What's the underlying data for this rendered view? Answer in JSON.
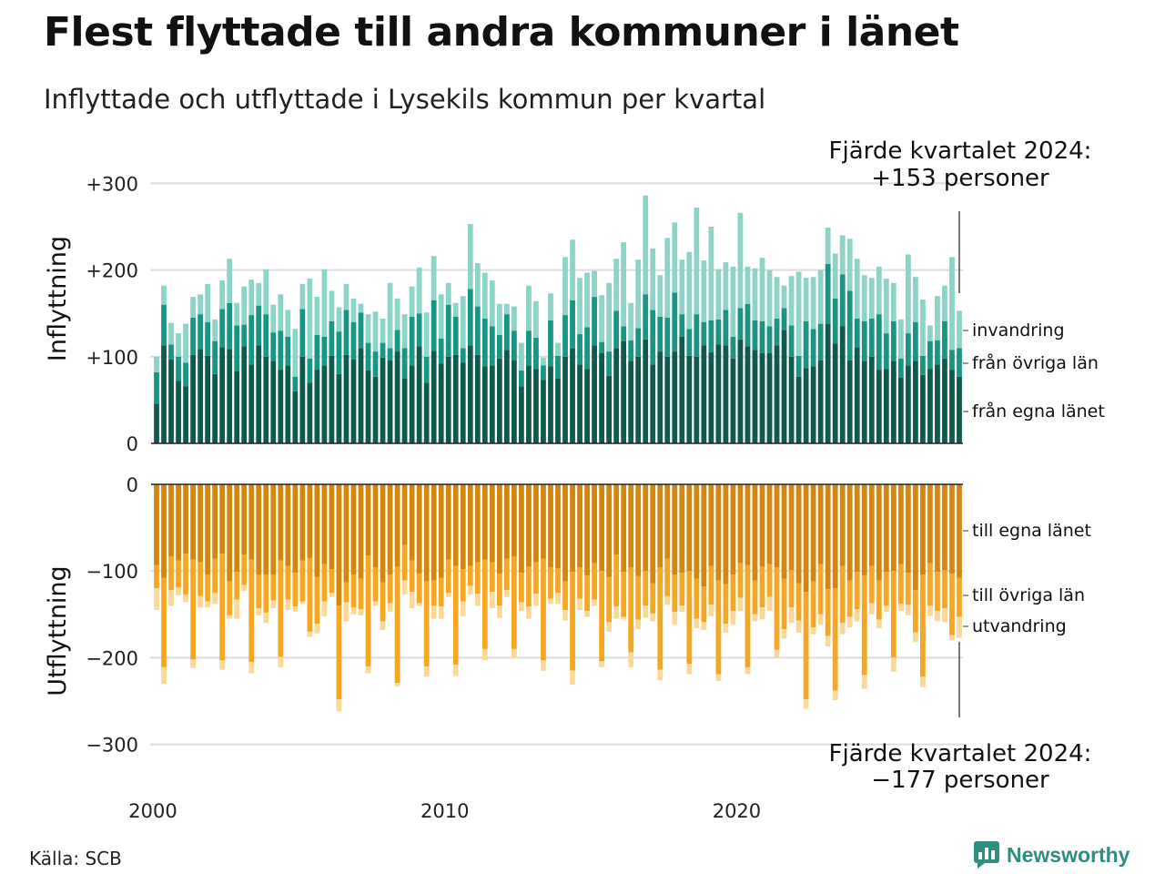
{
  "title": "Flest flyttade till andra kommuner i länet",
  "subtitle": "Inflyttade och utflyttade i Lysekils kommun per kvartal",
  "source": "Källa: SCB",
  "brand": "Newsworthy",
  "colors": {
    "in_own": "#10594f",
    "in_other": "#1a9483",
    "in_immig": "#8dd3c7",
    "out_own": "#d4860e",
    "out_other": "#f5a623",
    "out_emig": "#f9d89a",
    "grid": "#dddddd",
    "brand": "#2f8e7f"
  },
  "chart_data": [
    {
      "type": "bar",
      "stacked": true,
      "ylabel": "Inflyttning",
      "ylim": [
        0,
        300
      ],
      "yticks": [
        0,
        100,
        200,
        300
      ],
      "ytick_labels": [
        "0",
        "+100",
        "+200",
        "+300"
      ],
      "x_start": 2000,
      "frequency": "quarterly",
      "xticks": [
        2000,
        2010,
        2020
      ],
      "annotation": {
        "line1": "Fjärde kvartalet 2024:",
        "line2": "+153 personer"
      },
      "series": [
        {
          "name": "från egna länet",
          "values": [
            46,
            113,
            97,
            72,
            66,
            102,
            109,
            101,
            80,
            111,
            109,
            83,
            112,
            91,
            113,
            100,
            95,
            85,
            90,
            60,
            100,
            70,
            85,
            90,
            101,
            80,
            102,
            97,
            110,
            84,
            77,
            99,
            96,
            106,
            75,
            90,
            112,
            70,
            107,
            92,
            100,
            102,
            93,
            113,
            102,
            89,
            90,
            98,
            108,
            96,
            66,
            90,
            86,
            73,
            89,
            75,
            100,
            110,
            91,
            86,
            113,
            104,
            78,
            110,
            118,
            95,
            100,
            120,
            91,
            106,
            100,
            106,
            123,
            101,
            100,
            113,
            105,
            114,
            113,
            98,
            120,
            112,
            108,
            104,
            104,
            113,
            131,
            100,
            77,
            87,
            89,
            96,
            138,
            115,
            135,
            96,
            111,
            95,
            100,
            85,
            86,
            95,
            76,
            90,
            95,
            79,
            86,
            91,
            98,
            85,
            77
          ]
        },
        {
          "name": "från övriga län",
          "values": [
            36,
            47,
            17,
            28,
            27,
            43,
            40,
            39,
            38,
            44,
            53,
            53,
            25,
            57,
            46,
            49,
            33,
            45,
            33,
            17,
            55,
            28,
            40,
            33,
            40,
            49,
            52,
            43,
            41,
            32,
            29,
            17,
            14,
            25,
            35,
            56,
            38,
            30,
            58,
            29,
            60,
            44,
            17,
            65,
            56,
            55,
            45,
            27,
            41,
            34,
            18,
            40,
            36,
            17,
            53,
            26,
            48,
            55,
            35,
            48,
            56,
            13,
            28,
            43,
            17,
            24,
            33,
            52,
            63,
            40,
            45,
            68,
            26,
            31,
            49,
            27,
            37,
            29,
            41,
            25,
            36,
            49,
            34,
            37,
            31,
            31,
            25,
            36,
            24,
            54,
            43,
            42,
            69,
            52,
            60,
            80,
            33,
            46,
            44,
            64,
            41,
            46,
            22,
            37,
            45,
            22,
            32,
            28,
            43,
            23,
            33
          ]
        },
        {
          "name": "invandring",
          "values": [
            18,
            22,
            25,
            27,
            45,
            24,
            23,
            44,
            25,
            33,
            51,
            26,
            44,
            41,
            26,
            52,
            32,
            42,
            31,
            55,
            29,
            92,
            44,
            78,
            35,
            28,
            30,
            27,
            10,
            33,
            46,
            28,
            75,
            36,
            39,
            35,
            53,
            51,
            51,
            51,
            25,
            16,
            60,
            75,
            50,
            53,
            53,
            36,
            12,
            28,
            32,
            52,
            42,
            9,
            31,
            15,
            67,
            70,
            65,
            63,
            30,
            54,
            79,
            60,
            97,
            43,
            79,
            114,
            71,
            48,
            92,
            81,
            63,
            89,
            123,
            71,
            108,
            58,
            55,
            81,
            110,
            43,
            60,
            73,
            65,
            48,
            26,
            57,
            97,
            50,
            60,
            62,
            42,
            52,
            45,
            60,
            69,
            53,
            47,
            55,
            63,
            44,
            45,
            91,
            52,
            65,
            18,
            51,
            41,
            107,
            43
          ]
        }
      ]
    },
    {
      "type": "bar",
      "stacked": true,
      "ylabel": "Utflyttning",
      "ylim": [
        -300,
        0
      ],
      "yticks": [
        0,
        -100,
        -200,
        -300
      ],
      "ytick_labels": [
        "0",
        "−100",
        "−200",
        "−300"
      ],
      "x_start": 2000,
      "frequency": "quarterly",
      "xticks": [
        2000,
        2010,
        2020
      ],
      "annotation": {
        "line1": "Fjärde kvartalet 2024:",
        "line2": "−177 personer"
      },
      "series": [
        {
          "name": "till egna länet",
          "values": [
            -93,
            -108,
            -83,
            -88,
            -80,
            -87,
            -90,
            -104,
            -86,
            -80,
            -112,
            -101,
            -81,
            -87,
            -104,
            -104,
            -104,
            -88,
            -94,
            -102,
            -88,
            -85,
            -107,
            -92,
            -98,
            -140,
            -113,
            -104,
            -109,
            -82,
            -96,
            -113,
            -104,
            -95,
            -70,
            -88,
            -103,
            -112,
            -111,
            -108,
            -87,
            -94,
            -98,
            -94,
            -90,
            -87,
            -90,
            -103,
            -86,
            -83,
            -102,
            -95,
            -90,
            -86,
            -96,
            -97,
            -112,
            -101,
            -96,
            -105,
            -91,
            -100,
            -107,
            -81,
            -101,
            -96,
            -106,
            -100,
            -114,
            -96,
            -86,
            -104,
            -102,
            -100,
            -109,
            -118,
            -94,
            -111,
            -115,
            -104,
            -91,
            -93,
            -111,
            -95,
            -92,
            -96,
            -109,
            -99,
            -114,
            -124,
            -112,
            -92,
            -121,
            -120,
            -94,
            -111,
            -101,
            -105,
            -94,
            -111,
            -101,
            -100,
            -92,
            -102,
            -122,
            -104,
            -91,
            -101,
            -99,
            -103,
            -108
          ]
        },
        {
          "name": "till övriga län",
          "values": [
            -27,
            -103,
            -39,
            -31,
            -47,
            -115,
            -39,
            -31,
            -39,
            -123,
            -39,
            -32,
            -35,
            -118,
            -39,
            -44,
            -30,
            -111,
            -39,
            -39,
            -47,
            -85,
            -54,
            -43,
            -27,
            -108,
            -23,
            -38,
            -35,
            -128,
            -39,
            -45,
            -33,
            -134,
            -41,
            -36,
            -34,
            -98,
            -29,
            -33,
            -38,
            -114,
            -37,
            -23,
            -36,
            -103,
            -34,
            -37,
            -36,
            -107,
            -34,
            -46,
            -36,
            -117,
            -36,
            -28,
            -33,
            -114,
            -36,
            -41,
            -42,
            -104,
            -52,
            -60,
            -52,
            -98,
            -50,
            -40,
            -35,
            -118,
            -43,
            -43,
            -38,
            -107,
            -46,
            -41,
            -45,
            -108,
            -46,
            -42,
            -40,
            -118,
            -39,
            -47,
            -38,
            -95,
            -58,
            -43,
            -43,
            -124,
            -53,
            -58,
            -54,
            -118,
            -66,
            -42,
            -43,
            -115,
            -43,
            -45,
            -39,
            -100,
            -46,
            -37,
            -49,
            -118,
            -49,
            -45,
            -44,
            -71,
            -45
          ]
        },
        {
          "name": "utvandring",
          "values": [
            -25,
            -19,
            -18,
            -9,
            -9,
            -10,
            -13,
            -7,
            -13,
            -11,
            -4,
            -22,
            -7,
            -13,
            -8,
            -12,
            -9,
            -12,
            -12,
            -6,
            -3,
            -6,
            -11,
            -17,
            -5,
            -14,
            -22,
            -8,
            -7,
            -8,
            -5,
            -10,
            -10,
            -4,
            -16,
            -19,
            -3,
            -12,
            -15,
            -14,
            -5,
            -13,
            -17,
            -10,
            -14,
            -13,
            -19,
            -14,
            -8,
            -11,
            -10,
            -14,
            -14,
            -12,
            -6,
            -13,
            -12,
            -16,
            -13,
            -7,
            -7,
            -7,
            -11,
            -14,
            -3,
            -17,
            -11,
            -14,
            -9,
            -12,
            -10,
            -15,
            -7,
            -12,
            -11,
            -9,
            -13,
            -8,
            -10,
            -16,
            -15,
            -8,
            -8,
            -14,
            -16,
            -9,
            -11,
            -18,
            -14,
            -11,
            -8,
            -12,
            -12,
            -11,
            -13,
            -12,
            -14,
            -16,
            -13,
            -10,
            -7,
            -16,
            -8,
            -12,
            -11,
            -12,
            -12,
            -12,
            -16,
            -6,
            -24
          ]
        }
      ]
    }
  ]
}
